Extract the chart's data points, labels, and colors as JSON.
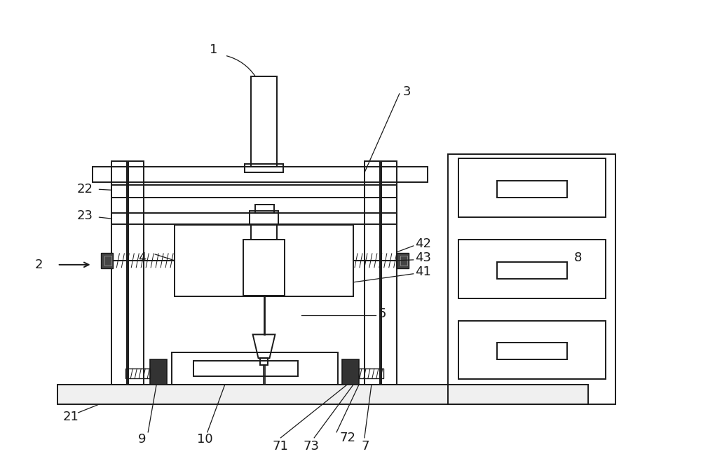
{
  "bg_color": "#ffffff",
  "line_color": "#1a1a1a",
  "lw": 1.4,
  "fig_width": 10.0,
  "fig_height": 6.78
}
